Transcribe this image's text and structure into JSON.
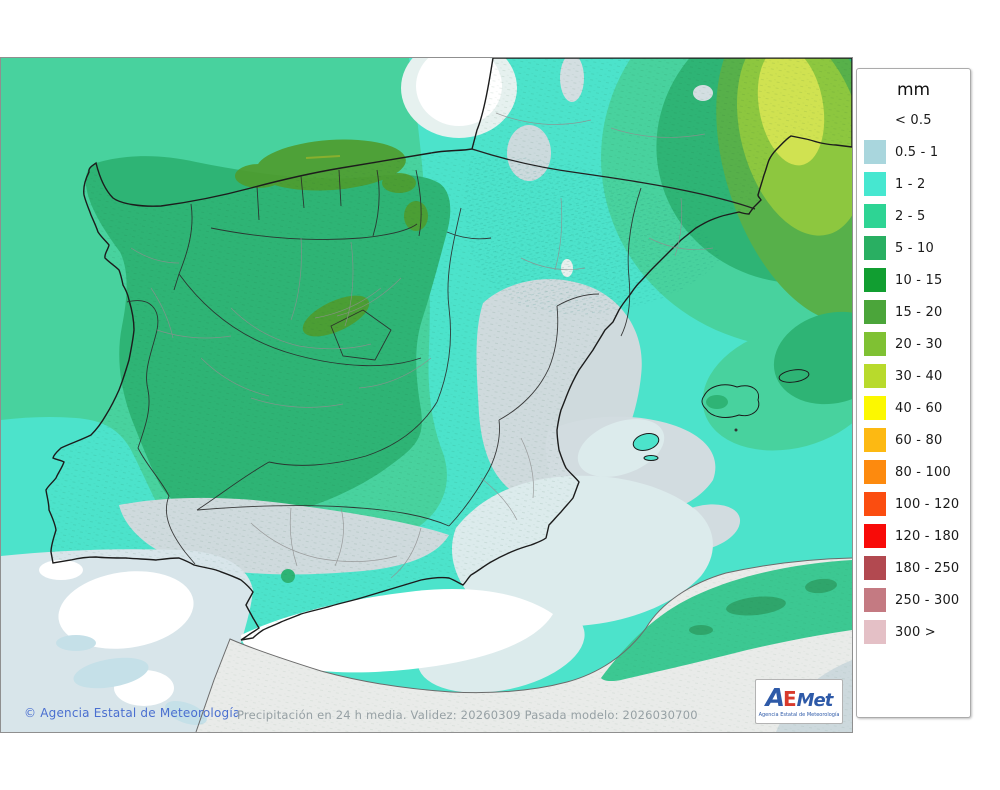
{
  "legend": {
    "title": "mm",
    "rows": [
      {
        "label": "< 0.5",
        "color": ""
      },
      {
        "label": "0.5 - 1",
        "color": "#a9d6dd"
      },
      {
        "label": "1 - 2",
        "color": "#46e7d0"
      },
      {
        "label": "2 - 5",
        "color": "#2ed494"
      },
      {
        "label": "5 - 10",
        "color": "#29af62"
      },
      {
        "label": "10 - 15",
        "color": "#119e31"
      },
      {
        "label": "15 - 20",
        "color": "#4ba53a"
      },
      {
        "label": "20 - 30",
        "color": "#7fc133"
      },
      {
        "label": "30 - 40",
        "color": "#b8da2c"
      },
      {
        "label": "40 - 60",
        "color": "#fcf800"
      },
      {
        "label": "60 - 80",
        "color": "#fdb912"
      },
      {
        "label": "80 - 100",
        "color": "#fd8a0e"
      },
      {
        "label": "100 - 120",
        "color": "#fb4d10"
      },
      {
        "label": "120 - 180",
        "color": "#f80b08"
      },
      {
        "label": "180 - 250",
        "color": "#b24950"
      },
      {
        "label": "250 - 300",
        "color": "#c47a82"
      },
      {
        "label": "300 >",
        "color": "#e4c0c6"
      }
    ]
  },
  "footer": {
    "copyright": "© Agencia Estatal de Meteorología",
    "status": "Precipitación en 24 h media. Validez: 20260309 Pasada modelo: 2026030700"
  },
  "logo": {
    "text_a": "A",
    "text_e": "E",
    "text_met": "Met",
    "caption": "Agencia Estatal de Meteorología"
  }
}
